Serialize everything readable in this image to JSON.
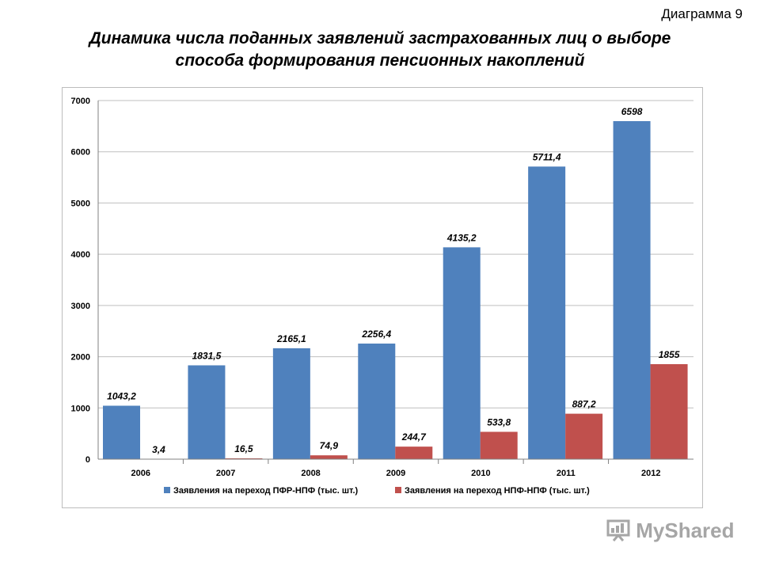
{
  "header": {
    "corner_label": "Диаграмма 9"
  },
  "chart_data": {
    "type": "bar",
    "title_lines": [
      "Динамика числа поданных заявлений застрахованных лиц о выборе",
      "способа формирования пенсионных накоплений"
    ],
    "categories": [
      "2006",
      "2007",
      "2008",
      "2009",
      "2010",
      "2011",
      "2012"
    ],
    "series": [
      {
        "name": "Заявления на переход ПФР-НПФ (тыс. шт.)",
        "color": "#4f81bd",
        "values": [
          1043.2,
          1831.5,
          2165.1,
          2256.4,
          4135.2,
          5711.4,
          6598
        ],
        "labels": [
          "1043,2",
          "1831,5",
          "2165,1",
          "2256,4",
          "4135,2",
          "5711,4",
          "6598"
        ]
      },
      {
        "name": "Заявления на переход НПФ-НПФ (тыс. шт.)",
        "color": "#c0504d",
        "values": [
          3.4,
          16.5,
          74.9,
          244.7,
          533.8,
          887.2,
          1855
        ],
        "labels": [
          "3,4",
          "16,5",
          "74,9",
          "244,7",
          "533,8",
          "887,2",
          "1855"
        ]
      }
    ],
    "ylim": [
      0,
      7000
    ],
    "yticks": [
      "0",
      "1000",
      "2000",
      "3000",
      "4000",
      "5000",
      "6000",
      "7000"
    ],
    "grid": true,
    "legend_position": "bottom"
  },
  "watermark": {
    "text": "MyShared"
  }
}
